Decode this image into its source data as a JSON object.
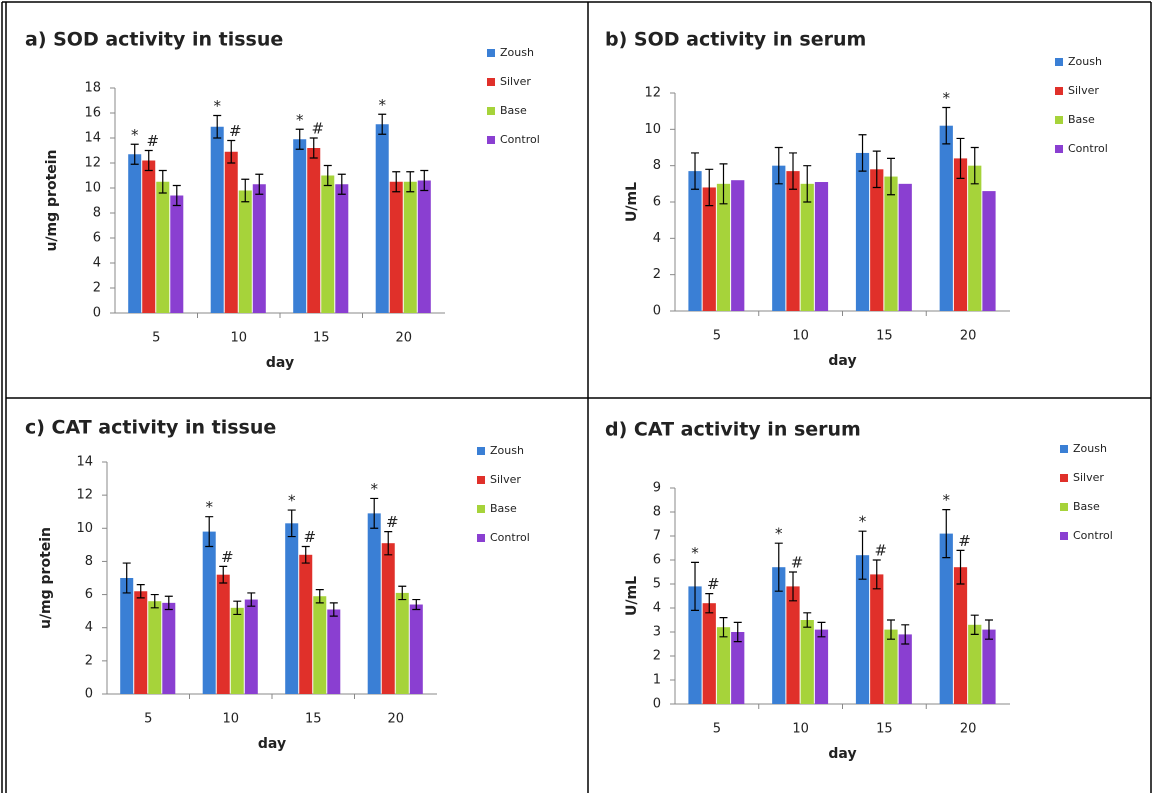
{
  "chart_data": [
    {
      "type": "bar",
      "title": "a) SOD activity in tissue",
      "x_label": "day",
      "y_label": "u/mg protein",
      "categories": [
        "5",
        "10",
        "15",
        "20"
      ],
      "ylim": [
        0,
        18
      ],
      "yticks": [
        0,
        2,
        4,
        6,
        8,
        10,
        12,
        14,
        16,
        18
      ],
      "series": [
        {
          "name": "Zoush",
          "color": "#3a7fd5",
          "values": [
            12.7,
            14.9,
            13.9,
            15.1
          ],
          "errors": [
            0.8,
            0.9,
            0.8,
            0.8
          ],
          "markers": [
            "*",
            "*",
            "*",
            "*"
          ]
        },
        {
          "name": "Silver",
          "color": "#e0302a",
          "values": [
            12.2,
            12.9,
            13.2,
            10.5
          ],
          "errors": [
            0.8,
            0.9,
            0.8,
            0.8
          ],
          "markers": [
            "#",
            "#",
            "#",
            null
          ]
        },
        {
          "name": "Base",
          "color": "#a6d33a",
          "values": [
            10.5,
            9.8,
            11.0,
            10.5
          ],
          "errors": [
            0.9,
            0.9,
            0.8,
            0.8
          ],
          "markers": [
            null,
            null,
            null,
            null
          ]
        },
        {
          "name": "Control",
          "color": "#8a3fd1",
          "values": [
            9.4,
            10.3,
            10.3,
            10.6
          ],
          "errors": [
            0.8,
            0.8,
            0.8,
            0.8
          ],
          "markers": [
            null,
            null,
            null,
            null
          ]
        }
      ]
    },
    {
      "type": "bar",
      "title": "b) SOD activity in serum",
      "x_label": "day",
      "y_label": "U/mL",
      "categories": [
        "5",
        "10",
        "15",
        "20"
      ],
      "ylim": [
        0,
        12
      ],
      "yticks": [
        0,
        2,
        4,
        6,
        8,
        10,
        12
      ],
      "series": [
        {
          "name": "Zoush",
          "color": "#3a7fd5",
          "values": [
            7.7,
            8.0,
            8.7,
            10.2
          ],
          "errors": [
            1.0,
            1.0,
            1.0,
            1.0
          ],
          "markers": [
            null,
            null,
            null,
            "*"
          ]
        },
        {
          "name": "Silver",
          "color": "#e0302a",
          "values": [
            6.8,
            7.7,
            7.8,
            8.4
          ],
          "errors": [
            1.0,
            1.0,
            1.0,
            1.1
          ],
          "markers": [
            null,
            null,
            null,
            null
          ]
        },
        {
          "name": "Base",
          "color": "#a6d33a",
          "values": [
            7.0,
            7.0,
            7.4,
            8.0
          ],
          "errors": [
            1.1,
            1.0,
            1.0,
            1.0
          ],
          "markers": [
            null,
            null,
            null,
            null
          ]
        },
        {
          "name": "Control",
          "color": "#8a3fd1",
          "values": [
            7.2,
            7.1,
            7.0,
            6.6
          ],
          "errors": [
            null,
            null,
            null,
            null
          ],
          "markers": [
            null,
            null,
            null,
            null
          ]
        }
      ]
    },
    {
      "type": "bar",
      "title": "c) CAT activity in tissue",
      "x_label": "day",
      "y_label": "u/mg protein",
      "categories": [
        "5",
        "10",
        "15",
        "20"
      ],
      "ylim": [
        0,
        14
      ],
      "yticks": [
        0,
        2,
        4,
        6,
        8,
        10,
        12,
        14
      ],
      "series": [
        {
          "name": "Zoush",
          "color": "#3a7fd5",
          "values": [
            7.0,
            9.8,
            10.3,
            10.9
          ],
          "errors": [
            0.9,
            0.9,
            0.8,
            0.9
          ],
          "markers": [
            null,
            "*",
            "*",
            "*"
          ]
        },
        {
          "name": "Silver",
          "color": "#e0302a",
          "values": [
            6.2,
            7.2,
            8.4,
            9.1
          ],
          "errors": [
            0.4,
            0.5,
            0.5,
            0.7
          ],
          "markers": [
            null,
            "#",
            "#",
            "#"
          ]
        },
        {
          "name": "Base",
          "color": "#a6d33a",
          "values": [
            5.6,
            5.2,
            5.9,
            6.1
          ],
          "errors": [
            0.4,
            0.4,
            0.4,
            0.4
          ],
          "markers": [
            null,
            null,
            null,
            null
          ]
        },
        {
          "name": "Control",
          "color": "#8a3fd1",
          "values": [
            5.5,
            5.7,
            5.1,
            5.4
          ],
          "errors": [
            0.4,
            0.4,
            0.4,
            0.3
          ],
          "markers": [
            null,
            null,
            null,
            null
          ]
        }
      ]
    },
    {
      "type": "bar",
      "title": "d) CAT activity in serum",
      "x_label": "day",
      "y_label": "U/mL",
      "categories": [
        "5",
        "10",
        "15",
        "20"
      ],
      "ylim": [
        0,
        9
      ],
      "yticks": [
        0,
        1,
        2,
        3,
        4,
        5,
        6,
        7,
        8,
        9
      ],
      "series": [
        {
          "name": "Zoush",
          "color": "#3a7fd5",
          "values": [
            4.9,
            5.7,
            6.2,
            7.1
          ],
          "errors": [
            1.0,
            1.0,
            1.0,
            1.0
          ],
          "markers": [
            "*",
            "*",
            "*",
            "*"
          ]
        },
        {
          "name": "Silver",
          "color": "#e0302a",
          "values": [
            4.2,
            4.9,
            5.4,
            5.7
          ],
          "errors": [
            0.4,
            0.6,
            0.6,
            0.7
          ],
          "markers": [
            "#",
            "#",
            "#",
            "#"
          ]
        },
        {
          "name": "Base",
          "color": "#a6d33a",
          "values": [
            3.2,
            3.5,
            3.1,
            3.3
          ],
          "errors": [
            0.4,
            0.3,
            0.4,
            0.4
          ],
          "markers": [
            null,
            null,
            null,
            null
          ]
        },
        {
          "name": "Control",
          "color": "#8a3fd1",
          "values": [
            3.0,
            3.1,
            2.9,
            3.1
          ],
          "errors": [
            0.4,
            0.3,
            0.4,
            0.4
          ],
          "markers": [
            null,
            null,
            null,
            null
          ]
        }
      ]
    }
  ]
}
